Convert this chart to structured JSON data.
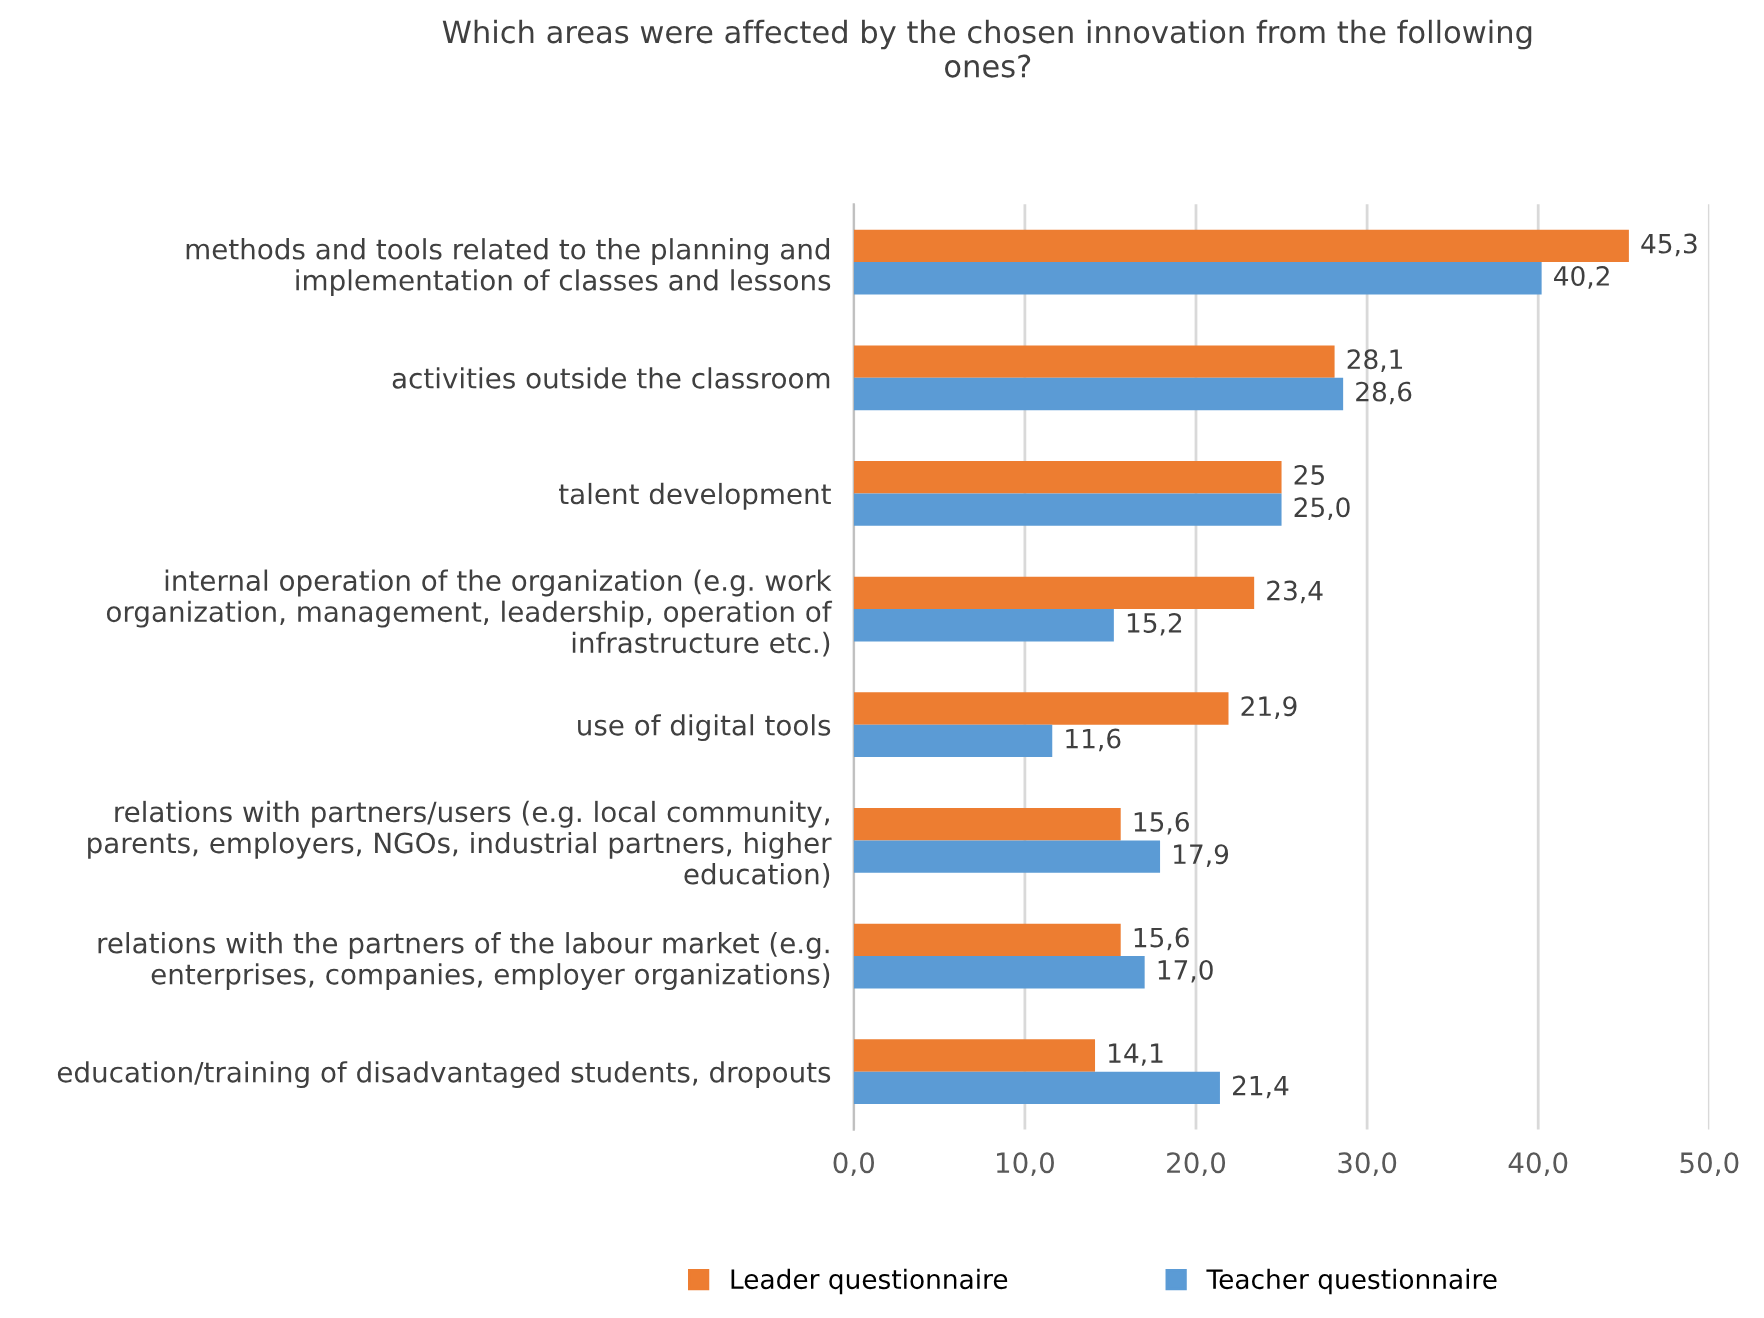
{
  "chart_data": {
    "type": "bar",
    "orientation": "horizontal",
    "title": "Which areas were affected by the chosen innovation from the following\nones?",
    "categories": [
      "methods and tools related to the planning and\nimplementation of classes and lessons",
      "activities outside the classroom",
      "talent development",
      "internal operation of the organization (e.g. work\norganization, management, leadership, operation of\ninfrastructure etc.)",
      "use of digital tools",
      "relations with partners/users (e.g. local community,\nparents, employers, NGOs, industrial partners, higher\neducation)",
      "relations with the partners of the labour market (e.g.\nenterprises, companies, employer organizations)",
      "education/training of disadvantaged students, dropouts"
    ],
    "series": [
      {
        "name": "Leader questionnaire",
        "color": "#ed7d31",
        "values": [
          45.3,
          28.1,
          25,
          23.4,
          21.9,
          15.6,
          15.6,
          14.1
        ],
        "value_labels": [
          "45,3",
          "28,1",
          "25",
          "23,4",
          "21,9",
          "15,6",
          "15,6",
          "14,1"
        ]
      },
      {
        "name": "Teacher questionnaire",
        "color": "#5b9bd5",
        "values": [
          40.2,
          28.6,
          25.0,
          15.2,
          11.6,
          17.9,
          17.0,
          21.4
        ],
        "value_labels": [
          "40,2",
          "28,6",
          "25,0",
          "15,2",
          "11,6",
          "17,9",
          "17,0",
          "21,4"
        ]
      }
    ],
    "xlim": [
      0,
      50
    ],
    "xticks": [
      {
        "value": 0,
        "label": "0,0"
      },
      {
        "value": 10,
        "label": "10,0"
      },
      {
        "value": 20,
        "label": "20,0"
      },
      {
        "value": 30,
        "label": "30,0"
      },
      {
        "value": 40,
        "label": "40,0"
      },
      {
        "value": 50,
        "label": "50,0"
      }
    ],
    "grid": "x",
    "legend": "bottom"
  }
}
